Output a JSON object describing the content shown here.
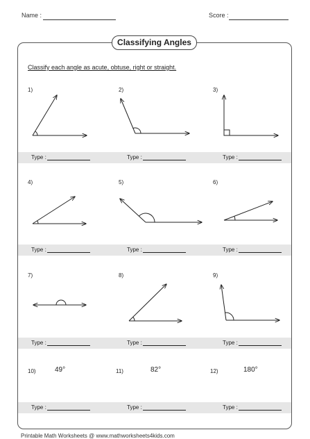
{
  "header": {
    "name_label": "Name :",
    "score_label": "Score :"
  },
  "title": "Classifying Angles",
  "instructions": "Classify each angle as acute, obtuse, right or straight.",
  "type_label": "Type :",
  "problems": [
    {
      "number": "1)"
    },
    {
      "number": "2)"
    },
    {
      "number": "3)"
    },
    {
      "number": "4)"
    },
    {
      "number": "5)"
    },
    {
      "number": "6)"
    },
    {
      "number": "7)"
    },
    {
      "number": "8)"
    },
    {
      "number": "9)"
    },
    {
      "number": "10)",
      "degree": "49°"
    },
    {
      "number": "11)",
      "degree": "82°"
    },
    {
      "number": "12)",
      "degree": "180°"
    }
  ],
  "footer": "Printable Math Worksheets @ www.mathworksheets4kids.com"
}
